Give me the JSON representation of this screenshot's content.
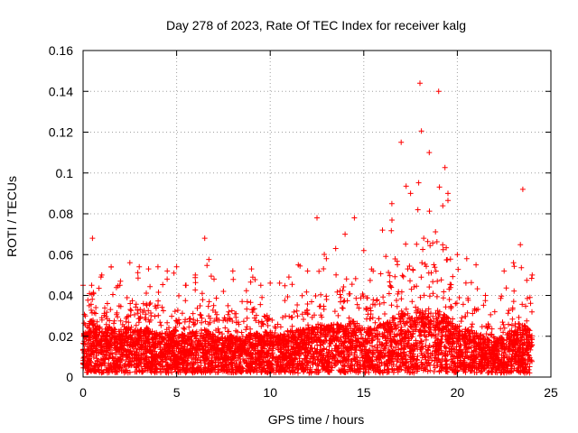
{
  "chart_data": {
    "type": "scatter",
    "title": "Day 278 of 2023, Rate Of TEC Index for receiver kalg",
    "xlabel": "GPS time / hours",
    "ylabel": "ROTI / TECUs",
    "xlim": [
      0,
      25
    ],
    "ylim": [
      0,
      0.16
    ],
    "xticks": [
      0,
      5,
      10,
      15,
      20,
      25
    ],
    "xtick_labels": [
      "0",
      "5",
      "10",
      "15",
      "20",
      "25"
    ],
    "yticks": [
      0,
      0.02,
      0.04,
      0.06,
      0.08,
      0.1,
      0.12,
      0.14,
      0.16
    ],
    "ytick_labels": [
      "0",
      "0.02",
      "0.04",
      "0.06",
      "0.08",
      "0.1",
      "0.12",
      "0.14",
      "0.16"
    ],
    "grid": true,
    "marker": "+",
    "series_color": "#ff0000",
    "envelope": {
      "x": [
        0,
        0.5,
        1,
        1.5,
        2,
        2.5,
        3,
        3.5,
        4,
        4.5,
        5,
        5.5,
        6,
        6.5,
        7,
        7.5,
        8,
        8.5,
        9,
        9.5,
        10,
        10.5,
        11,
        11.5,
        12,
        12.5,
        13,
        13.5,
        14,
        14.5,
        15,
        15.5,
        16,
        16.5,
        17,
        17.5,
        18,
        18.5,
        19,
        19.5,
        20,
        20.5,
        21,
        21.5,
        22,
        22.5,
        23,
        23.5,
        24
      ],
      "max_roti": [
        0.045,
        0.068,
        0.05,
        0.054,
        0.047,
        0.056,
        0.054,
        0.053,
        0.054,
        0.052,
        0.054,
        0.045,
        0.05,
        0.068,
        0.048,
        0.042,
        0.052,
        0.037,
        0.053,
        0.045,
        0.046,
        0.046,
        0.049,
        0.055,
        0.052,
        0.078,
        0.058,
        0.063,
        0.07,
        0.078,
        0.062,
        0.052,
        0.072,
        0.085,
        0.115,
        0.09,
        0.144,
        0.11,
        0.14,
        0.09,
        0.06,
        0.058,
        0.055,
        0.04,
        0.032,
        0.052,
        0.056,
        0.092,
        0.05
      ],
      "typical_roti": [
        0.015,
        0.02,
        0.016,
        0.017,
        0.015,
        0.017,
        0.016,
        0.016,
        0.015,
        0.015,
        0.016,
        0.014,
        0.015,
        0.016,
        0.014,
        0.013,
        0.014,
        0.012,
        0.015,
        0.014,
        0.014,
        0.014,
        0.015,
        0.016,
        0.016,
        0.018,
        0.017,
        0.018,
        0.018,
        0.019,
        0.017,
        0.016,
        0.018,
        0.02,
        0.022,
        0.02,
        0.024,
        0.022,
        0.023,
        0.02,
        0.017,
        0.016,
        0.015,
        0.013,
        0.011,
        0.014,
        0.015,
        0.018,
        0.015
      ]
    }
  }
}
